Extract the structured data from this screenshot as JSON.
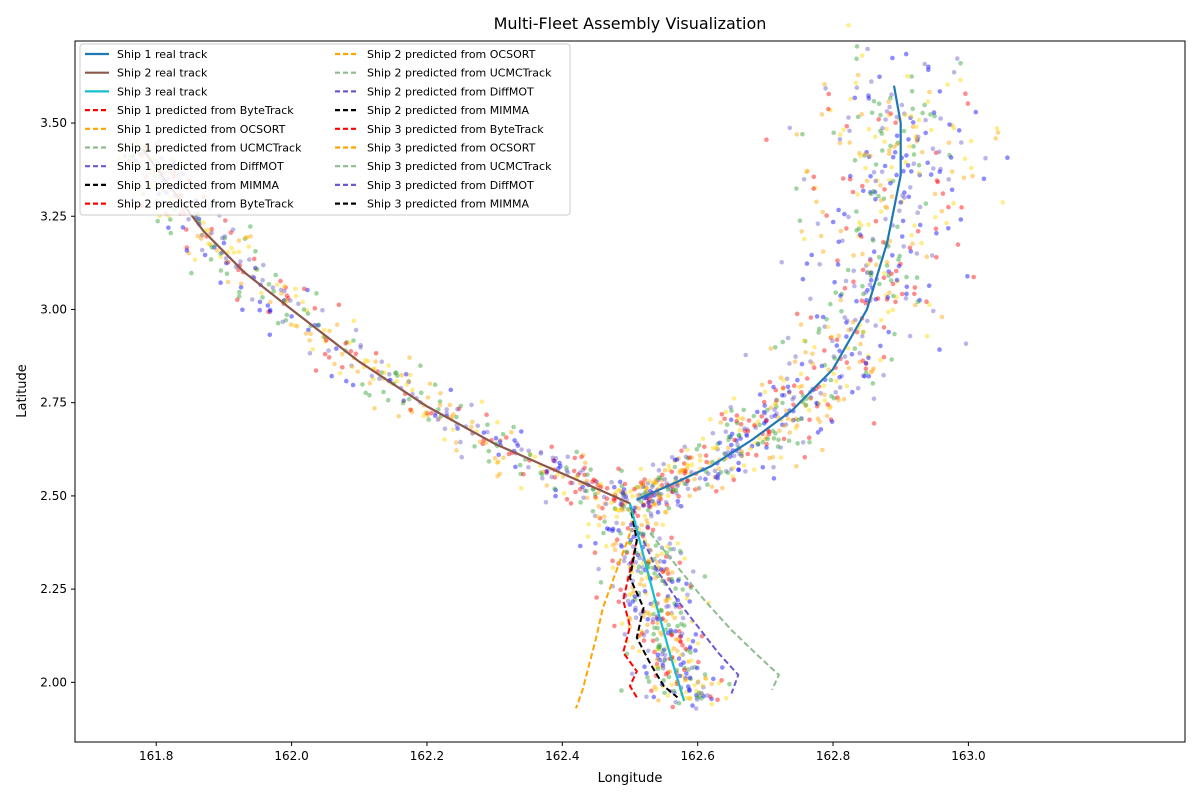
{
  "chart_data": {
    "type": "line",
    "title": "Multi-Fleet Assembly Visualization",
    "xlabel": "Longitude",
    "ylabel": "Latitude",
    "xlim": [
      161.68,
      163.32
    ],
    "ylim": [
      1.84,
      3.72
    ],
    "x_ticks": [
      161.8,
      162.0,
      162.2,
      162.4,
      162.6,
      162.8,
      163.0
    ],
    "x_tick_labels": [
      "161.8",
      "162.0",
      "162.2",
      "162.4",
      "162.6",
      "162.8",
      "163.0"
    ],
    "y_ticks": [
      2.0,
      2.25,
      2.5,
      2.75,
      3.0,
      3.25,
      3.5
    ],
    "y_tick_labels": [
      "2.00",
      "2.25",
      "2.50",
      "2.75",
      "3.00",
      "3.25",
      "3.50"
    ],
    "grid": false,
    "legend_position": "top-left",
    "scatter_colors": [
      "#ff0000",
      "#ffa500",
      "#2ca02c",
      "#6a5acd",
      "#ffd700",
      "#0000ff"
    ],
    "series": [
      {
        "name": "Ship 1 real track",
        "style": "solid",
        "color": "#1f77b4",
        "x": [
          162.51,
          162.56,
          162.62,
          162.68,
          162.74,
          162.8,
          162.85,
          162.88,
          162.9,
          162.9,
          162.89
        ],
        "y": [
          2.49,
          2.53,
          2.58,
          2.65,
          2.73,
          2.84,
          3.0,
          3.18,
          3.36,
          3.5,
          3.6
        ]
      },
      {
        "name": "Ship 2 real track",
        "style": "solid",
        "color": "#8c564b",
        "x": [
          161.78,
          161.82,
          161.87,
          161.93,
          162.0,
          162.1,
          162.2,
          162.3,
          162.4,
          162.45,
          162.5
        ],
        "y": [
          3.43,
          3.33,
          3.21,
          3.1,
          3.0,
          2.86,
          2.74,
          2.64,
          2.56,
          2.52,
          2.48
        ]
      },
      {
        "name": "Ship 3 real track",
        "style": "solid",
        "color": "#17becf",
        "x": [
          162.5,
          162.52,
          162.54,
          162.56,
          162.58
        ],
        "y": [
          2.48,
          2.34,
          2.2,
          2.07,
          1.95
        ]
      },
      {
        "name": "Ship 1 predicted from ByteTrack",
        "style": "dashed",
        "color": "#ff0000",
        "x": [],
        "y": []
      },
      {
        "name": "Ship 1 predicted from OCSORT",
        "style": "dashed",
        "color": "#ffa500",
        "x": [],
        "y": []
      },
      {
        "name": "Ship 1 predicted from UCMCTrack",
        "style": "dashed",
        "color": "#8fbc8f",
        "x": [],
        "y": []
      },
      {
        "name": "Ship 1 predicted from DiffMOT",
        "style": "dashed",
        "color": "#6a5acd",
        "x": [],
        "y": []
      },
      {
        "name": "Ship 1 predicted from MIMMA",
        "style": "dashed",
        "color": "#000000",
        "x": [],
        "y": []
      },
      {
        "name": "Ship 2 predicted from ByteTrack",
        "style": "dashed",
        "color": "#ff0000",
        "x": [],
        "y": []
      },
      {
        "name": "Ship 2 predicted from OCSORT",
        "style": "dashed",
        "color": "#ffa500",
        "x": [],
        "y": []
      },
      {
        "name": "Ship 2 predicted from UCMCTrack",
        "style": "dashed",
        "color": "#8fbc8f",
        "x": [],
        "y": []
      },
      {
        "name": "Ship 2 predicted from DiffMOT",
        "style": "dashed",
        "color": "#6a5acd",
        "x": [],
        "y": []
      },
      {
        "name": "Ship 2 predicted from MIMMA",
        "style": "dashed",
        "color": "#000000",
        "x": [],
        "y": []
      },
      {
        "name": "Ship 3 predicted from ByteTrack",
        "style": "dashed",
        "color": "#ff0000",
        "x": [
          162.51,
          162.5,
          162.49,
          162.5,
          162.49,
          162.51,
          162.5,
          162.51
        ],
        "y": [
          2.38,
          2.3,
          2.22,
          2.15,
          2.08,
          2.03,
          1.99,
          1.96
        ]
      },
      {
        "name": "Ship 3 predicted from OCSORT",
        "style": "dashed",
        "color": "#ffa500",
        "x": [
          162.5,
          162.48,
          162.46,
          162.45,
          162.44,
          162.43,
          162.42
        ],
        "y": [
          2.4,
          2.3,
          2.2,
          2.12,
          2.05,
          1.98,
          1.93
        ]
      },
      {
        "name": "Ship 3 predicted from UCMCTrack",
        "style": "dashed",
        "color": "#8fbc8f",
        "x": [
          162.53,
          162.57,
          162.61,
          162.65,
          162.69,
          162.72,
          162.71
        ],
        "y": [
          2.4,
          2.31,
          2.22,
          2.14,
          2.07,
          2.02,
          1.98
        ]
      },
      {
        "name": "Ship 3 predicted from DiffMOT",
        "style": "dashed",
        "color": "#6a5acd",
        "x": [
          162.52,
          162.54,
          162.57,
          162.6,
          162.63,
          162.66,
          162.65
        ],
        "y": [
          2.38,
          2.3,
          2.22,
          2.15,
          2.08,
          2.02,
          1.97
        ]
      },
      {
        "name": "Ship 3 predicted from MIMMA",
        "style": "dashed",
        "color": "#000000",
        "x": [
          162.5,
          162.51,
          162.5,
          162.52,
          162.51,
          162.53,
          162.55,
          162.57
        ],
        "y": [
          2.48,
          2.38,
          2.28,
          2.2,
          2.12,
          2.05,
          1.99,
          1.96
        ]
      }
    ]
  }
}
